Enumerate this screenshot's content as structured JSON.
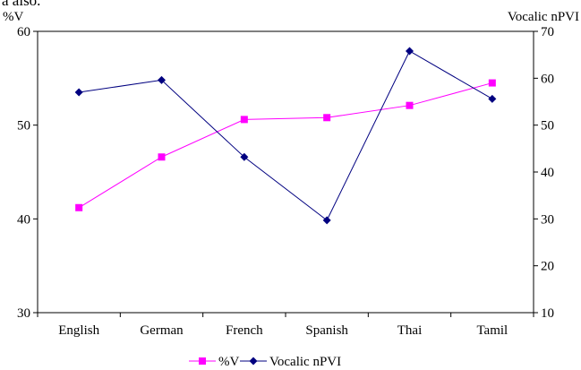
{
  "page": {
    "top_text": "a also."
  },
  "chart_data": {
    "type": "line",
    "categories": [
      "English",
      "German",
      "French",
      "Spanish",
      "Thai",
      "Tamil"
    ],
    "series": [
      {
        "name": "%V",
        "axis": "left",
        "color": "#FF00FF",
        "marker": "square",
        "values": [
          41.2,
          46.6,
          50.6,
          50.8,
          52.1,
          54.5
        ]
      },
      {
        "name": "Vocalic nPVI",
        "axis": "right",
        "color": "#000080",
        "marker": "diamond",
        "values": [
          57.0,
          59.6,
          43.2,
          29.7,
          65.8,
          55.6
        ]
      }
    ],
    "y_left": {
      "label": "%V",
      "range": [
        30,
        60
      ],
      "ticks": [
        30,
        40,
        50,
        60
      ]
    },
    "y_right": {
      "label": "Vocalic nPVI",
      "range": [
        10,
        70
      ],
      "ticks": [
        10,
        20,
        30,
        40,
        50,
        60,
        70
      ]
    },
    "grid": false,
    "legend": {
      "position": "bottom"
    }
  }
}
